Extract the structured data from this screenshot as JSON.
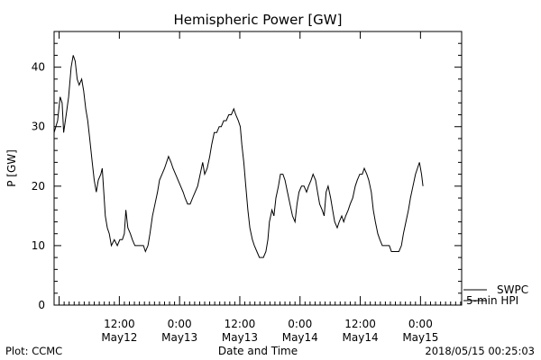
{
  "chart_data": {
    "type": "line",
    "title": "Hemispheric Power [GW]",
    "ylabel": "P [GW]",
    "xlabel": "Date and Time",
    "ylim": [
      0,
      46
    ],
    "xlim": [
      -1.0,
      80.2
    ],
    "y_ticks": [
      0,
      10,
      20,
      30,
      40
    ],
    "x_ticks": [
      {
        "x": 12,
        "time": "12:00",
        "date": "May12"
      },
      {
        "x": 24,
        "time": "0:00",
        "date": "May13"
      },
      {
        "x": 36,
        "time": "12:00",
        "date": "May13"
      },
      {
        "x": 48,
        "time": "0:00",
        "date": "May14"
      },
      {
        "x": 60,
        "time": "12:00",
        "date": "May14"
      },
      {
        "x": 72,
        "time": "0:00",
        "date": "May15"
      }
    ],
    "grid": false,
    "series": [
      {
        "name": "SWPC",
        "color": "#000000",
        "points": [
          [
            -1.0,
            29
          ],
          [
            -0.3,
            31
          ],
          [
            0.2,
            35
          ],
          [
            0.6,
            34
          ],
          [
            0.9,
            29
          ],
          [
            1.4,
            32
          ],
          [
            1.9,
            35
          ],
          [
            2.4,
            40
          ],
          [
            2.8,
            42
          ],
          [
            3.2,
            41
          ],
          [
            3.6,
            38
          ],
          [
            4.0,
            37
          ],
          [
            4.5,
            38
          ],
          [
            4.9,
            36
          ],
          [
            5.3,
            33
          ],
          [
            5.7,
            31
          ],
          [
            6.1,
            28
          ],
          [
            6.6,
            24
          ],
          [
            7.0,
            21
          ],
          [
            7.4,
            19
          ],
          [
            7.8,
            21
          ],
          [
            8.3,
            22
          ],
          [
            8.6,
            23
          ],
          [
            8.9,
            19
          ],
          [
            9.2,
            15
          ],
          [
            9.6,
            13
          ],
          [
            10.0,
            12
          ],
          [
            10.4,
            10
          ],
          [
            11.0,
            11
          ],
          [
            11.6,
            10
          ],
          [
            12.1,
            11
          ],
          [
            12.6,
            11
          ],
          [
            13.0,
            12
          ],
          [
            13.3,
            16
          ],
          [
            13.7,
            13
          ],
          [
            14.2,
            12
          ],
          [
            14.6,
            11
          ],
          [
            15.1,
            10
          ],
          [
            16.0,
            10
          ],
          [
            16.8,
            10
          ],
          [
            17.2,
            9
          ],
          [
            17.7,
            10
          ],
          [
            18.1,
            12
          ],
          [
            18.6,
            15
          ],
          [
            19.1,
            17
          ],
          [
            19.6,
            19
          ],
          [
            20.0,
            21
          ],
          [
            20.5,
            22
          ],
          [
            21.0,
            23
          ],
          [
            21.4,
            24
          ],
          [
            21.8,
            25
          ],
          [
            22.3,
            24
          ],
          [
            22.7,
            23
          ],
          [
            23.2,
            22
          ],
          [
            23.7,
            21
          ],
          [
            24.2,
            20
          ],
          [
            24.7,
            19
          ],
          [
            25.1,
            18
          ],
          [
            25.6,
            17
          ],
          [
            26.1,
            17
          ],
          [
            26.6,
            18
          ],
          [
            27.1,
            19
          ],
          [
            27.6,
            20
          ],
          [
            28.1,
            22
          ],
          [
            28.6,
            24
          ],
          [
            29.0,
            22
          ],
          [
            29.5,
            23
          ],
          [
            30.0,
            25
          ],
          [
            30.4,
            27
          ],
          [
            30.9,
            29
          ],
          [
            31.4,
            29
          ],
          [
            31.9,
            30
          ],
          [
            32.3,
            30
          ],
          [
            32.8,
            31
          ],
          [
            33.3,
            31
          ],
          [
            33.8,
            32
          ],
          [
            34.3,
            32
          ],
          [
            34.8,
            33
          ],
          [
            35.2,
            32
          ],
          [
            35.7,
            31
          ],
          [
            36.1,
            30
          ],
          [
            36.4,
            27
          ],
          [
            36.8,
            24
          ],
          [
            37.2,
            20
          ],
          [
            37.6,
            16
          ],
          [
            38.0,
            13
          ],
          [
            38.5,
            11
          ],
          [
            38.9,
            10
          ],
          [
            39.4,
            9
          ],
          [
            39.9,
            8
          ],
          [
            40.7,
            8
          ],
          [
            41.2,
            9
          ],
          [
            41.6,
            11
          ],
          [
            41.9,
            14
          ],
          [
            42.4,
            16
          ],
          [
            42.8,
            15
          ],
          [
            43.2,
            18
          ],
          [
            43.7,
            20
          ],
          [
            44.1,
            22
          ],
          [
            44.6,
            22
          ],
          [
            45.0,
            21
          ],
          [
            45.5,
            19
          ],
          [
            46.0,
            17
          ],
          [
            46.5,
            15
          ],
          [
            47.0,
            14
          ],
          [
            47.4,
            17
          ],
          [
            47.8,
            19
          ],
          [
            48.3,
            20
          ],
          [
            48.8,
            20
          ],
          [
            49.3,
            19
          ],
          [
            49.7,
            20
          ],
          [
            50.2,
            21
          ],
          [
            50.6,
            22
          ],
          [
            51.1,
            21
          ],
          [
            51.5,
            19
          ],
          [
            51.9,
            17
          ],
          [
            52.4,
            16
          ],
          [
            52.8,
            15
          ],
          [
            53.2,
            19
          ],
          [
            53.6,
            20
          ],
          [
            54.1,
            18
          ],
          [
            54.5,
            16
          ],
          [
            54.9,
            14
          ],
          [
            55.4,
            13
          ],
          [
            55.8,
            14
          ],
          [
            56.3,
            15
          ],
          [
            56.7,
            14
          ],
          [
            57.1,
            15
          ],
          [
            57.6,
            16
          ],
          [
            58.0,
            17
          ],
          [
            58.5,
            18
          ],
          [
            59.0,
            20
          ],
          [
            59.4,
            21
          ],
          [
            59.9,
            22
          ],
          [
            60.4,
            22
          ],
          [
            60.8,
            23
          ],
          [
            61.3,
            22
          ],
          [
            61.7,
            21
          ],
          [
            62.2,
            19
          ],
          [
            62.6,
            16
          ],
          [
            63.0,
            14
          ],
          [
            63.5,
            12
          ],
          [
            63.9,
            11
          ],
          [
            64.4,
            10
          ],
          [
            65.3,
            10
          ],
          [
            65.8,
            10
          ],
          [
            66.2,
            9
          ],
          [
            67.2,
            9
          ],
          [
            67.7,
            9
          ],
          [
            68.2,
            10
          ],
          [
            68.6,
            12
          ],
          [
            69.1,
            14
          ],
          [
            69.6,
            16
          ],
          [
            70.0,
            18
          ],
          [
            70.5,
            20
          ],
          [
            71.0,
            22
          ],
          [
            71.4,
            23
          ],
          [
            71.8,
            24
          ],
          [
            72.2,
            22
          ],
          [
            72.5,
            20
          ]
        ]
      },
      {
        "name": "5-min HPI",
        "color": "#000000",
        "points": []
      }
    ],
    "legend": "bottom-right",
    "footer_left": "Plot: CCMC",
    "footer_right": "2018/05/15 00:25:03"
  }
}
